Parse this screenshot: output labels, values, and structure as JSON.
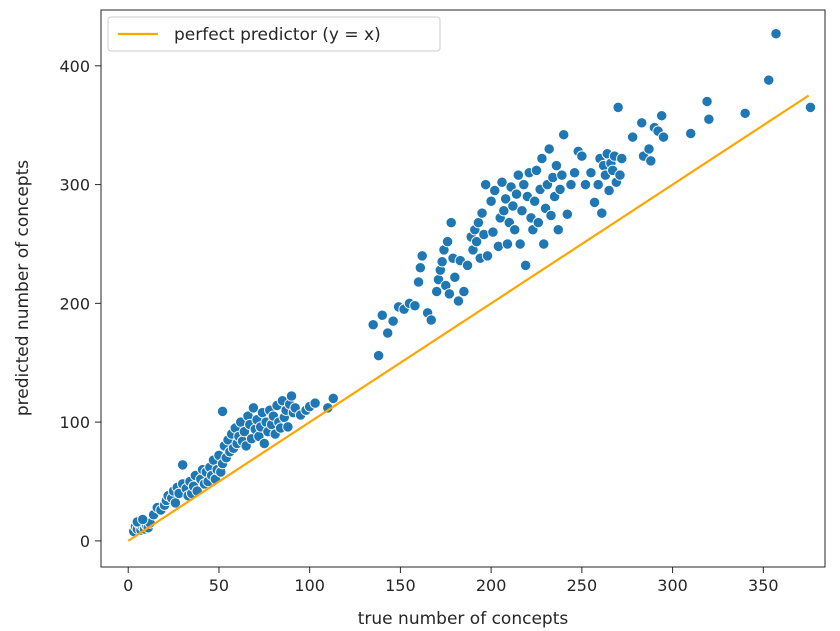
{
  "chart_data": {
    "type": "scatter",
    "title": "",
    "xlabel": "true number of concepts",
    "ylabel": "predicted number of concepts",
    "xlim": [
      -15,
      384
    ],
    "ylim": [
      -22,
      447
    ],
    "xticks": [
      0,
      50,
      100,
      150,
      200,
      250,
      300,
      350
    ],
    "yticks": [
      0,
      100,
      200,
      300,
      400
    ],
    "grid": false,
    "legend": {
      "placement": "top-left",
      "entries": [
        "perfect predictor (y = x)"
      ]
    },
    "colors": {
      "points": "#1f77b4",
      "point_edge": "#ffffff",
      "reference_line": "#ffa500",
      "axes": "#262626"
    },
    "reference_line": {
      "name": "perfect predictor (y = x)",
      "x": [
        0,
        375
      ],
      "y": [
        0,
        375
      ]
    },
    "points": [
      [
        3,
        8
      ],
      [
        4,
        12
      ],
      [
        5,
        10
      ],
      [
        6,
        14
      ],
      [
        7,
        9
      ],
      [
        8,
        12
      ],
      [
        9,
        10
      ],
      [
        10,
        13
      ],
      [
        11,
        11
      ],
      [
        12,
        15
      ],
      [
        5,
        16
      ],
      [
        8,
        18
      ],
      [
        14,
        22
      ],
      [
        16,
        28
      ],
      [
        18,
        26
      ],
      [
        20,
        30
      ],
      [
        21,
        34
      ],
      [
        22,
        38
      ],
      [
        24,
        36
      ],
      [
        25,
        42
      ],
      [
        26,
        32
      ],
      [
        27,
        45
      ],
      [
        28,
        40
      ],
      [
        30,
        48
      ],
      [
        30,
        64
      ],
      [
        32,
        44
      ],
      [
        33,
        38
      ],
      [
        34,
        50
      ],
      [
        35,
        40
      ],
      [
        36,
        46
      ],
      [
        37,
        55
      ],
      [
        38,
        42
      ],
      [
        40,
        52
      ],
      [
        41,
        60
      ],
      [
        42,
        48
      ],
      [
        43,
        58
      ],
      [
        44,
        50
      ],
      [
        45,
        62
      ],
      [
        46,
        55
      ],
      [
        47,
        68
      ],
      [
        48,
        52
      ],
      [
        49,
        60
      ],
      [
        50,
        72
      ],
      [
        51,
        58
      ],
      [
        52,
        65
      ],
      [
        52,
        109
      ],
      [
        53,
        80
      ],
      [
        54,
        70
      ],
      [
        55,
        85
      ],
      [
        56,
        75
      ],
      [
        57,
        90
      ],
      [
        58,
        78
      ],
      [
        59,
        95
      ],
      [
        60,
        82
      ],
      [
        61,
        88
      ],
      [
        62,
        100
      ],
      [
        63,
        84
      ],
      [
        64,
        92
      ],
      [
        65,
        80
      ],
      [
        66,
        105
      ],
      [
        67,
        98
      ],
      [
        68,
        86
      ],
      [
        69,
        112
      ],
      [
        70,
        94
      ],
      [
        71,
        102
      ],
      [
        72,
        88
      ],
      [
        73,
        96
      ],
      [
        74,
        108
      ],
      [
        75,
        82
      ],
      [
        76,
        100
      ],
      [
        77,
        92
      ],
      [
        78,
        110
      ],
      [
        79,
        98
      ],
      [
        80,
        105
      ],
      [
        81,
        90
      ],
      [
        82,
        114
      ],
      [
        83,
        100
      ],
      [
        84,
        95
      ],
      [
        85,
        118
      ],
      [
        86,
        104
      ],
      [
        87,
        110
      ],
      [
        88,
        96
      ],
      [
        89,
        115
      ],
      [
        90,
        122
      ],
      [
        91,
        108
      ],
      [
        92,
        112
      ],
      [
        95,
        106
      ],
      [
        98,
        110
      ],
      [
        100,
        113
      ],
      [
        103,
        116
      ],
      [
        110,
        112
      ],
      [
        113,
        120
      ],
      [
        135,
        182
      ],
      [
        138,
        156
      ],
      [
        140,
        190
      ],
      [
        143,
        175
      ],
      [
        146,
        185
      ],
      [
        149,
        197
      ],
      [
        152,
        195
      ],
      [
        155,
        200
      ],
      [
        158,
        198
      ],
      [
        160,
        218
      ],
      [
        161,
        230
      ],
      [
        162,
        240
      ],
      [
        165,
        192
      ],
      [
        167,
        186
      ],
      [
        170,
        210
      ],
      [
        171,
        220
      ],
      [
        172,
        228
      ],
      [
        173,
        235
      ],
      [
        174,
        245
      ],
      [
        175,
        215
      ],
      [
        176,
        252
      ],
      [
        177,
        208
      ],
      [
        178,
        268
      ],
      [
        179,
        238
      ],
      [
        180,
        222
      ],
      [
        182,
        202
      ],
      [
        183,
        236
      ],
      [
        185,
        210
      ],
      [
        187,
        232
      ],
      [
        189,
        256
      ],
      [
        190,
        245
      ],
      [
        191,
        262
      ],
      [
        192,
        252
      ],
      [
        193,
        268
      ],
      [
        194,
        238
      ],
      [
        195,
        276
      ],
      [
        196,
        258
      ],
      [
        197,
        300
      ],
      [
        198,
        240
      ],
      [
        200,
        286
      ],
      [
        201,
        260
      ],
      [
        202,
        295
      ],
      [
        204,
        248
      ],
      [
        205,
        272
      ],
      [
        206,
        302
      ],
      [
        207,
        278
      ],
      [
        208,
        288
      ],
      [
        209,
        250
      ],
      [
        210,
        268
      ],
      [
        211,
        298
      ],
      [
        212,
        282
      ],
      [
        213,
        262
      ],
      [
        214,
        292
      ],
      [
        215,
        308
      ],
      [
        216,
        250
      ],
      [
        217,
        278
      ],
      [
        218,
        300
      ],
      [
        219,
        232
      ],
      [
        220,
        290
      ],
      [
        221,
        310
      ],
      [
        222,
        272
      ],
      [
        223,
        262
      ],
      [
        224,
        286
      ],
      [
        225,
        312
      ],
      [
        226,
        268
      ],
      [
        227,
        296
      ],
      [
        228,
        322
      ],
      [
        229,
        250
      ],
      [
        230,
        280
      ],
      [
        231,
        300
      ],
      [
        232,
        330
      ],
      [
        233,
        274
      ],
      [
        234,
        306
      ],
      [
        235,
        290
      ],
      [
        236,
        316
      ],
      [
        237,
        262
      ],
      [
        238,
        296
      ],
      [
        239,
        308
      ],
      [
        240,
        342
      ],
      [
        242,
        275
      ],
      [
        244,
        300
      ],
      [
        246,
        310
      ],
      [
        248,
        328
      ],
      [
        250,
        324
      ],
      [
        252,
        300
      ],
      [
        255,
        310
      ],
      [
        257,
        285
      ],
      [
        259,
        300
      ],
      [
        260,
        322
      ],
      [
        261,
        276
      ],
      [
        262,
        316
      ],
      [
        263,
        308
      ],
      [
        264,
        326
      ],
      [
        265,
        295
      ],
      [
        266,
        318
      ],
      [
        267,
        312
      ],
      [
        268,
        324
      ],
      [
        269,
        302
      ],
      [
        270,
        365
      ],
      [
        271,
        308
      ],
      [
        272,
        322
      ],
      [
        278,
        340
      ],
      [
        283,
        352
      ],
      [
        284,
        324
      ],
      [
        287,
        330
      ],
      [
        288,
        320
      ],
      [
        290,
        348
      ],
      [
        292,
        345
      ],
      [
        294,
        358
      ],
      [
        295,
        340
      ],
      [
        310,
        343
      ],
      [
        319,
        370
      ],
      [
        320,
        355
      ],
      [
        340,
        360
      ],
      [
        353,
        388
      ],
      [
        357,
        427
      ],
      [
        376,
        365
      ]
    ]
  }
}
